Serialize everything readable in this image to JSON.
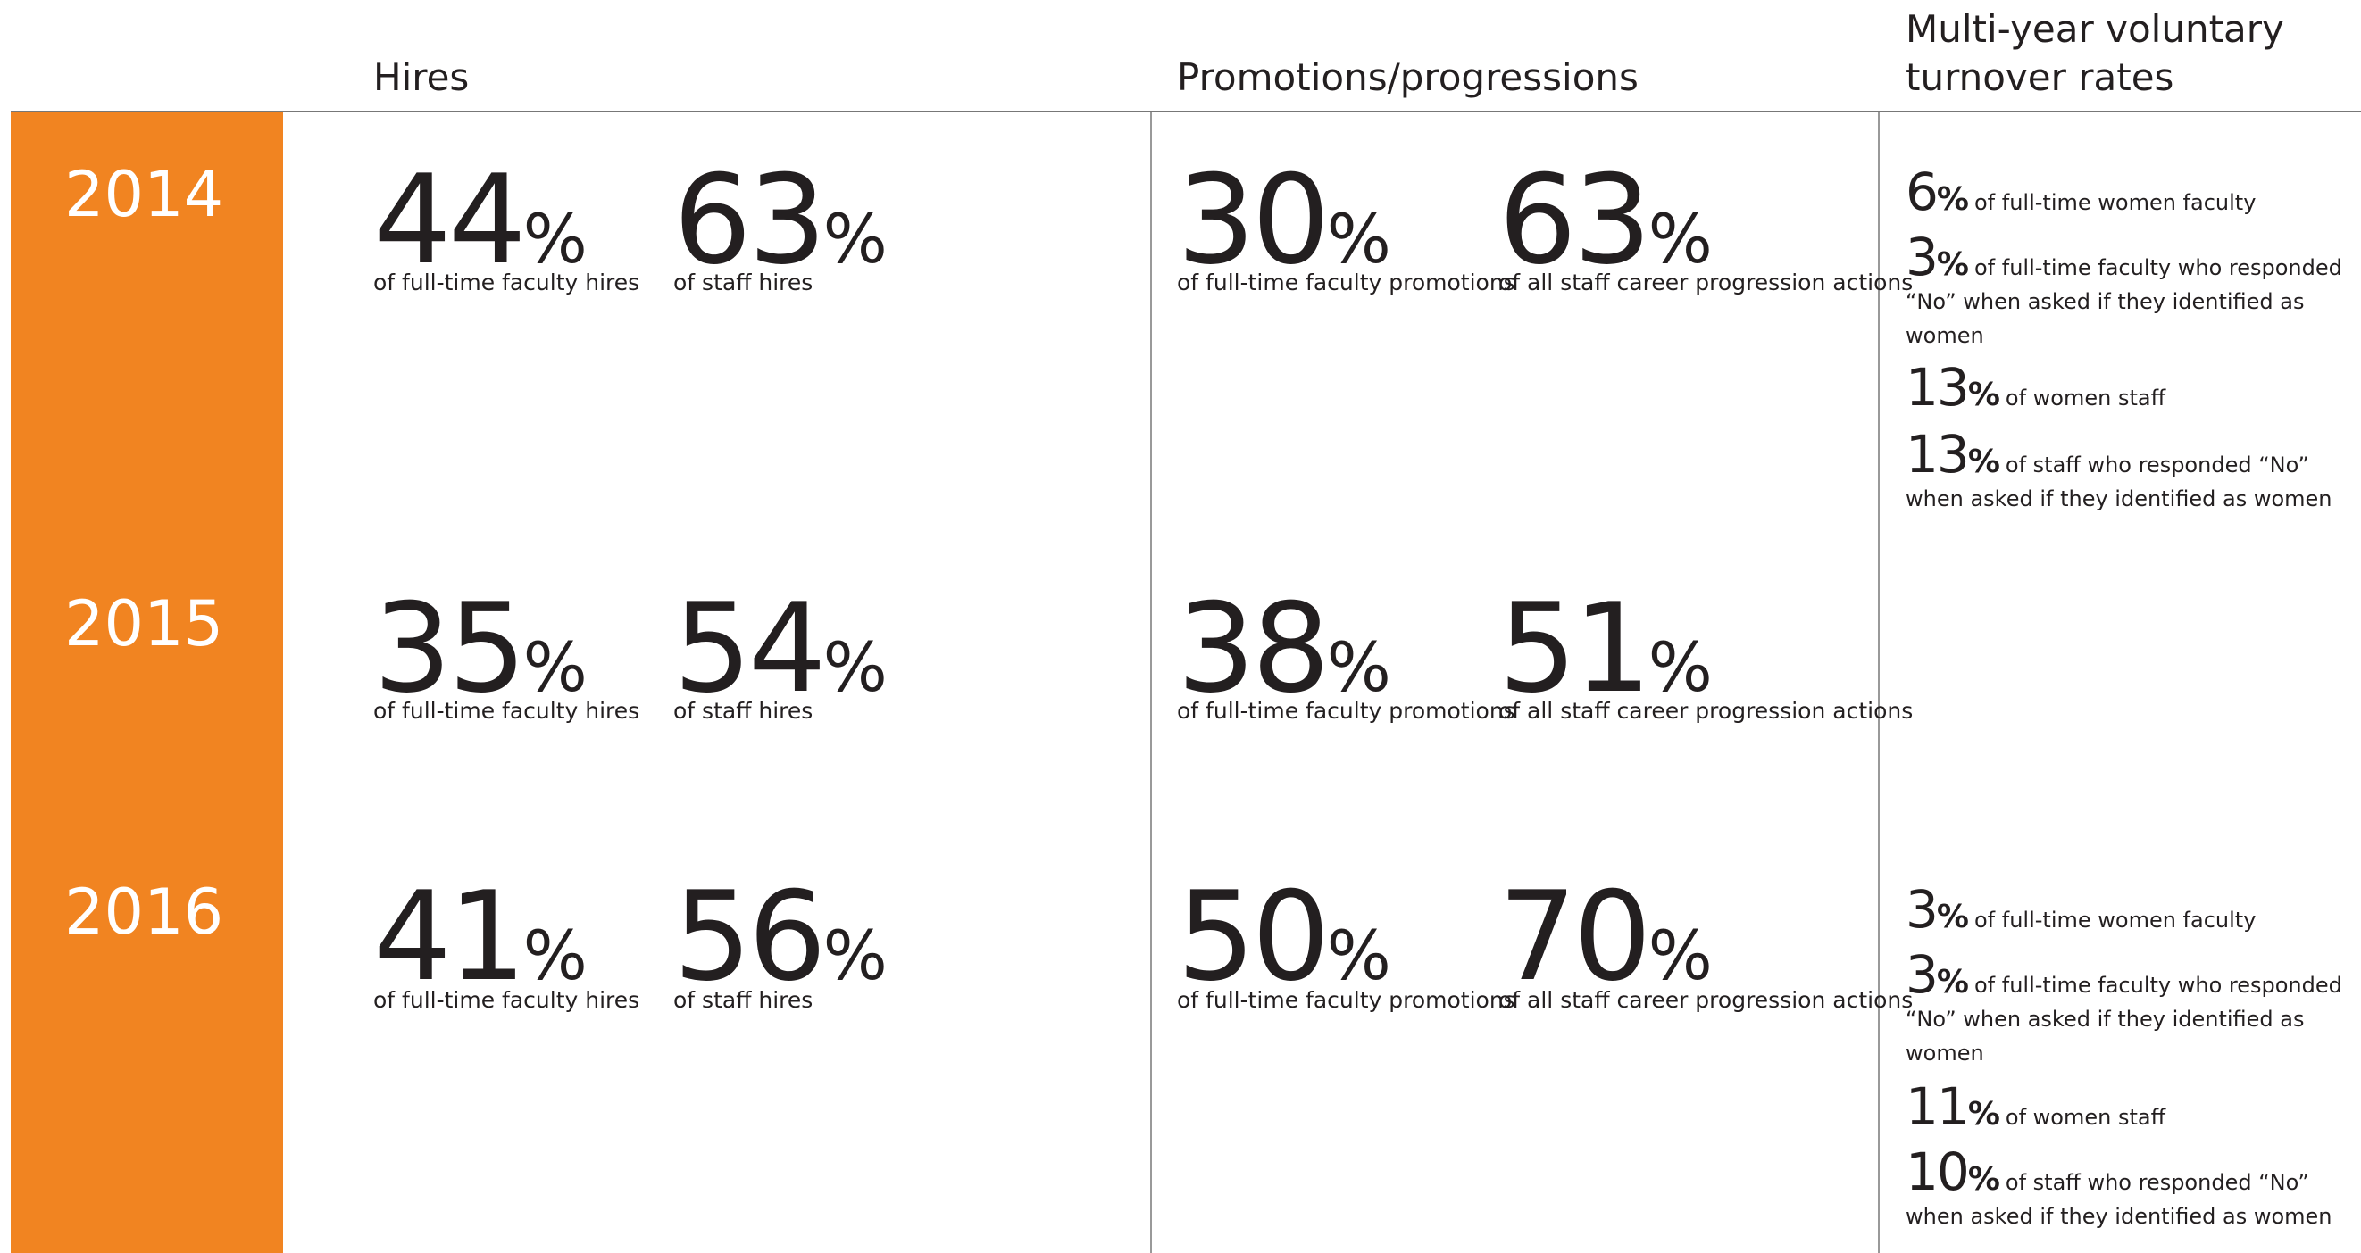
{
  "headers": {
    "hires": "Hires",
    "promotions": "Promotions/progressions",
    "turnover": "Multi-year voluntary turnover rates"
  },
  "rows": [
    {
      "year": "2014",
      "hires": [
        {
          "value": "44",
          "unit": "%",
          "label": "of full-time faculty hires"
        },
        {
          "value": "63",
          "unit": "%",
          "label": "of staff hires"
        }
      ],
      "promotions": [
        {
          "value": "30",
          "unit": "%",
          "label": "of full-time faculty promotions"
        },
        {
          "value": "63",
          "unit": "%",
          "label": "of all staff career progression actions"
        }
      ],
      "turnover": [
        {
          "value": "6",
          "unit": "%",
          "label": "of full-time women faculty"
        },
        {
          "value": "3",
          "unit": "%",
          "label": "of full-time faculty who responded “No” when asked if they identified as women"
        },
        {
          "value": "13",
          "unit": "%",
          "label": "of women staff"
        },
        {
          "value": "13",
          "unit": "%",
          "label": "of staff who responded “No” when asked if they identified as women"
        }
      ]
    },
    {
      "year": "2015",
      "hires": [
        {
          "value": "35",
          "unit": "%",
          "label": "of full-time faculty hires"
        },
        {
          "value": "54",
          "unit": "%",
          "label": "of staff hires"
        }
      ],
      "promotions": [
        {
          "value": "38",
          "unit": "%",
          "label": "of full-time faculty promotions"
        },
        {
          "value": "51",
          "unit": "%",
          "label": "of all staff career progression actions"
        }
      ]
    },
    {
      "year": "2016",
      "hires": [
        {
          "value": "41",
          "unit": "%",
          "label": "of full-time faculty hires"
        },
        {
          "value": "56",
          "unit": "%",
          "label": "of staff hires"
        }
      ],
      "promotions": [
        {
          "value": "50",
          "unit": "%",
          "label": "of full-time faculty promotions"
        },
        {
          "value": "70",
          "unit": "%",
          "label": "of all staff career progression actions"
        }
      ],
      "turnover": [
        {
          "value": "3",
          "unit": "%",
          "label": "of full-time women faculty"
        },
        {
          "value": "3",
          "unit": "%",
          "label": "of full-time faculty who responded “No” when asked if they identified as women"
        },
        {
          "value": "11",
          "unit": "%",
          "label": "of women staff"
        },
        {
          "value": "10",
          "unit": "%",
          "label": "of staff who responded “No” when asked if they identified as women"
        }
      ]
    }
  ]
}
